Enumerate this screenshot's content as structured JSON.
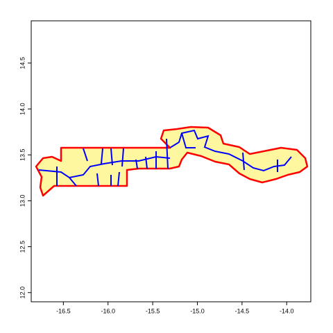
{
  "chart_data": {
    "type": "map",
    "xlim": [
      -16.86,
      -13.73
    ],
    "ylim": [
      11.9,
      14.96
    ],
    "xticks": [
      -16.5,
      {
        "value": -16,
        "label": "-16.0"
      },
      -15.5,
      {
        "value": -15,
        "label": "-15.0"
      },
      -14.5,
      {
        "value": -14,
        "label": "-14.0"
      }
    ],
    "yticks": [
      {
        "value": 12,
        "label": "12.0"
      },
      12.5,
      {
        "value": 13,
        "label": "13.0"
      },
      13.5,
      {
        "value": 14,
        "label": "14.0"
      },
      14.5
    ],
    "fill": "#fff7a0",
    "border_color": "#ff0000",
    "region_color": "#0000ff"
  }
}
